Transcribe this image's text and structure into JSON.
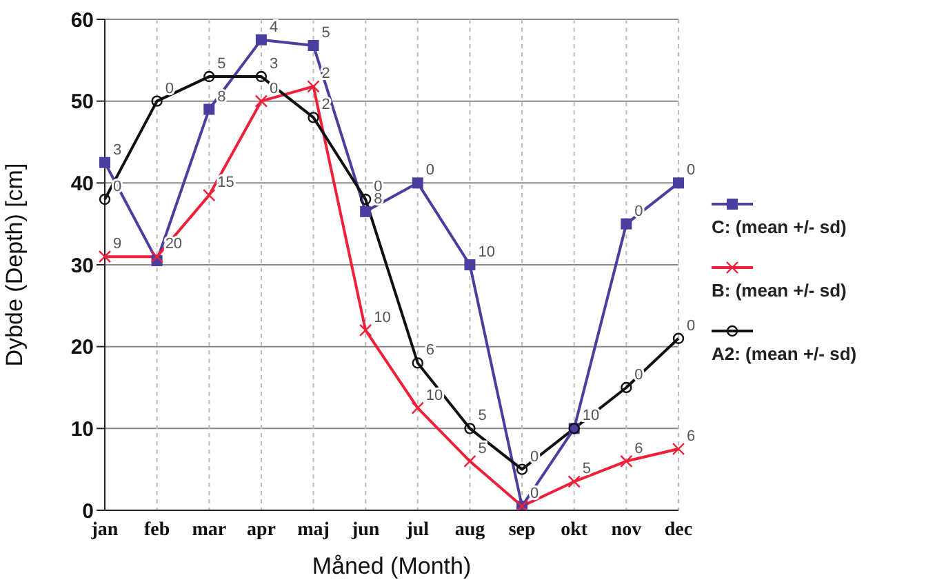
{
  "chart_data": {
    "type": "line",
    "xlabel": "Måned (Month)",
    "ylabel": "Dybde (Depth) [cm]",
    "categories": [
      "jan",
      "feb",
      "mar",
      "apr",
      "maj",
      "jun",
      "jul",
      "aug",
      "sep",
      "okt",
      "nov",
      "dec"
    ],
    "series": [
      {
        "name": "C: (mean +/- sd)",
        "color": "#4a3f9f",
        "marker": "square",
        "values": [
          42.5,
          30.5,
          49,
          57.5,
          56.8,
          36.5,
          40,
          30,
          0.5,
          10,
          35,
          40
        ]
      },
      {
        "name": "B: (mean +/- sd)",
        "color": "#f0203a",
        "marker": "cross",
        "values": [
          31,
          31,
          38.5,
          50,
          51.8,
          22,
          12.5,
          6,
          0.5,
          3.5,
          6,
          7.5
        ]
      },
      {
        "name": "A2: (mean +/- sd)",
        "color": "#111111",
        "marker": "circle",
        "values": [
          38,
          50,
          53,
          53,
          48,
          38,
          18,
          10,
          5,
          10,
          15,
          21
        ]
      }
    ],
    "annotations": [
      {
        "text": "3",
        "x": "jan",
        "y": 42.5
      },
      {
        "text": "8",
        "x": "mar",
        "y": 49
      },
      {
        "text": "4",
        "x": "apr",
        "y": 57.5
      },
      {
        "text": "5",
        "x": "maj",
        "y": 56.8
      },
      {
        "text": "8",
        "x": "jun",
        "y": 36.5
      },
      {
        "text": "0",
        "x": "jul",
        "y": 40
      },
      {
        "text": "10",
        "x": "aug",
        "y": 30
      },
      {
        "text": "0",
        "x": "sep",
        "y": 0.5
      },
      {
        "text": "0",
        "x": "nov",
        "y": 35
      },
      {
        "text": "0",
        "x": "dec",
        "y": 40
      },
      {
        "text": "9",
        "x": "jan",
        "y": 31
      },
      {
        "text": "20",
        "x": "feb",
        "y": 31
      },
      {
        "text": "15",
        "x": "mar",
        "y": 38.5
      },
      {
        "text": "0",
        "x": "apr",
        "y": 50
      },
      {
        "text": "2",
        "x": "maj",
        "y": 51.8
      },
      {
        "text": "10",
        "x": "jun",
        "y": 22
      },
      {
        "text": "10",
        "x": "jul",
        "y": 12.5
      },
      {
        "text": "5",
        "x": "aug",
        "y": 6
      },
      {
        "text": "5",
        "x": "okt",
        "y": 3.5
      },
      {
        "text": "6",
        "x": "nov",
        "y": 6
      },
      {
        "text": "6",
        "x": "dec",
        "y": 7.5
      },
      {
        "text": "0",
        "x": "jan",
        "y": 38
      },
      {
        "text": "0",
        "x": "feb",
        "y": 50
      },
      {
        "text": "5",
        "x": "mar",
        "y": 53
      },
      {
        "text": "3",
        "x": "apr",
        "y": 53
      },
      {
        "text": "2",
        "x": "maj",
        "y": 48
      },
      {
        "text": "0",
        "x": "jun",
        "y": 38
      },
      {
        "text": "6",
        "x": "jul",
        "y": 18
      },
      {
        "text": "5",
        "x": "aug",
        "y": 10
      },
      {
        "text": "0",
        "x": "sep",
        "y": 5
      },
      {
        "text": "10",
        "x": "okt",
        "y": 10
      },
      {
        "text": "0",
        "x": "nov",
        "y": 15
      },
      {
        "text": "0",
        "x": "dec",
        "y": 21
      }
    ],
    "ylim": [
      0,
      60
    ],
    "yticks": [
      0,
      10,
      20,
      30,
      40,
      50,
      60
    ],
    "grid": true,
    "legend": "right",
    "line_style": "solid"
  }
}
